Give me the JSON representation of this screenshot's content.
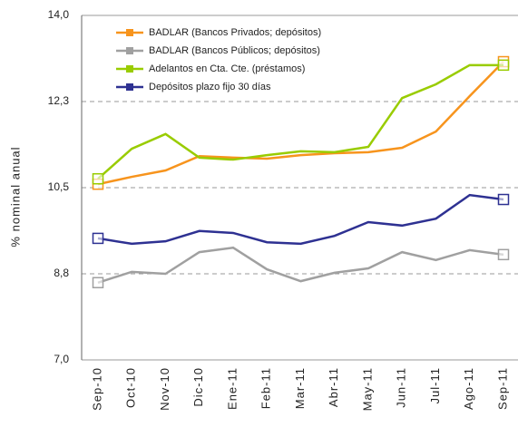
{
  "chart_data": {
    "type": "line",
    "y_label": "% nominal anual",
    "categories": [
      "Sep-10",
      "Oct-10",
      "Nov-10",
      "Dic-10",
      "Ene-11",
      "Feb-11",
      "Mar-11",
      "Abr-11",
      "May-11",
      "Jun-11",
      "Jul-11",
      "Ago-11",
      "Sep-11"
    ],
    "series": [
      {
        "name": "BADLAR (Bancos Privados; depósitos)",
        "color": "#f7941d",
        "values": [
          10.57,
          10.72,
          10.85,
          11.14,
          11.11,
          11.09,
          11.16,
          11.2,
          11.22,
          11.31,
          11.64,
          12.36,
          13.06
        ]
      },
      {
        "name": "BADLAR (Bancos Públicos; depósitos)",
        "color": "#a0a0a0",
        "values": [
          8.57,
          8.79,
          8.75,
          9.19,
          9.28,
          8.84,
          8.6,
          8.77,
          8.86,
          9.19,
          9.03,
          9.23,
          9.14
        ]
      },
      {
        "name": "Adelantos en Cta. Cte. (préstamos)",
        "color": "#99cc00",
        "values": [
          10.68,
          11.29,
          11.59,
          11.11,
          11.07,
          11.16,
          11.24,
          11.22,
          11.33,
          12.32,
          12.6,
          12.99,
          12.99
        ]
      },
      {
        "name": "Depósitos plazo fijo 30 días",
        "color": "#2e3192",
        "values": [
          9.47,
          9.36,
          9.41,
          9.62,
          9.58,
          9.39,
          9.36,
          9.52,
          9.8,
          9.73,
          9.87,
          10.35,
          10.26
        ]
      }
    ],
    "ylim": [
      7,
      14
    ],
    "yticks": [
      {
        "value": 7,
        "label": "7,0"
      },
      {
        "value": 8.75,
        "label": "8,8"
      },
      {
        "value": 10.5,
        "label": "10,5"
      },
      {
        "value": 12.25,
        "label": "12,3"
      },
      {
        "value": 14,
        "label": "14,0"
      }
    ],
    "grid": true,
    "legend": "top-left"
  }
}
